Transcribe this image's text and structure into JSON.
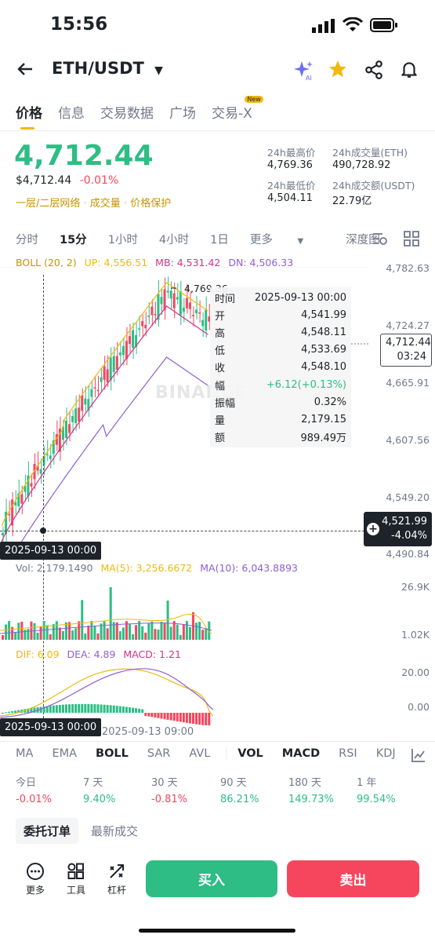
{
  "status": {
    "time": "15:56"
  },
  "header": {
    "pair": "ETH/USDT"
  },
  "tabs": [
    {
      "label": "价格"
    },
    {
      "label": "信息"
    },
    {
      "label": "交易数据"
    },
    {
      "label": "广场"
    },
    {
      "label": "交易-X",
      "badge": "New"
    }
  ],
  "ticker": {
    "last_price": "4,712.44",
    "usd_price": "$4,712.44",
    "change_pct": "-0.01%",
    "links": [
      "一层/二层网络",
      "成交量",
      "价格保护"
    ],
    "stats": {
      "high_label": "24h最高价",
      "high": "4,769.36",
      "vol_eth_label": "24h成交量(ETH)",
      "vol_eth": "490,728.92",
      "low_label": "24h最低价",
      "low": "4,504.11",
      "vol_usdt_label": "24h成交额(USDT)",
      "vol_usdt": "22.79亿"
    }
  },
  "intervals": [
    "分时",
    "15分",
    "1小时",
    "4小时",
    "1日",
    "更多",
    "深度图"
  ],
  "chart": {
    "boll_label": "BOLL (20, 2)",
    "up": "UP: 4,556.51",
    "mb": "MB: 4,531.42",
    "dn": "DN: 4,506.33",
    "y_axis": [
      "4,782.63",
      "4,724.27",
      "4,665.91",
      "4,607.56",
      "4,549.20",
      "4,490.84"
    ],
    "high_mark": "4,769.36",
    "last_price_tag": "4,712.44",
    "countdown": "03:24",
    "cursor_price": "4,521.99",
    "cursor_change": "-4.04%",
    "cursor_time": "2025-09-13 00:00",
    "watermark": "BINANCE",
    "tooltip": [
      {
        "k": "时间",
        "v": "2025-09-13 00:00"
      },
      {
        "k": "开",
        "v": "4,541.99"
      },
      {
        "k": "高",
        "v": "4,548.11"
      },
      {
        "k": "低",
        "v": "4,533.69"
      },
      {
        "k": "收",
        "v": "4,548.10"
      },
      {
        "k": "幅",
        "v": "+6.12(+0.13%)"
      },
      {
        "k": "振幅",
        "v": "0.32%"
      },
      {
        "k": "量",
        "v": "2,179.15"
      },
      {
        "k": "额",
        "v": "989.49万"
      }
    ],
    "vol": {
      "vol": "Vol: 2,179.1490",
      "ma5": "MA(5): 3,256.6672",
      "ma10": "MA(10): 6,043.8893",
      "y_top": "26.9K",
      "y_bot": "1.02K"
    },
    "macd": {
      "dif": "DIF: 6.09",
      "dea": "DEA: 4.89",
      "macd": "MACD: 1.21",
      "y_top": "20.00",
      "y_bot": "0.00"
    },
    "x_label": "2025-09-13 09:00"
  },
  "indicator_tabs": [
    "MA",
    "EMA",
    "BOLL",
    "SAR",
    "AVL",
    "VOL",
    "MACD",
    "RSI",
    "KDJ"
  ],
  "performance": [
    {
      "label": "今日",
      "value": "-0.01%"
    },
    {
      "label": "7 天",
      "value": "9.40%"
    },
    {
      "label": "30 天",
      "value": "-0.81%"
    },
    {
      "label": "90 天",
      "value": "86.21%"
    },
    {
      "label": "180 天",
      "value": "149.73%"
    },
    {
      "label": "1 年",
      "value": "99.54%"
    }
  ],
  "order_tabs": [
    "委托订单",
    "最新成交"
  ],
  "bottom": {
    "more": "更多",
    "tools": "工具",
    "leverage": "杠杆",
    "buy": "买入",
    "sell": "卖出"
  },
  "colors": {
    "up": "#2ebd85",
    "down": "#f6465d",
    "accent": "#f0b90b"
  }
}
